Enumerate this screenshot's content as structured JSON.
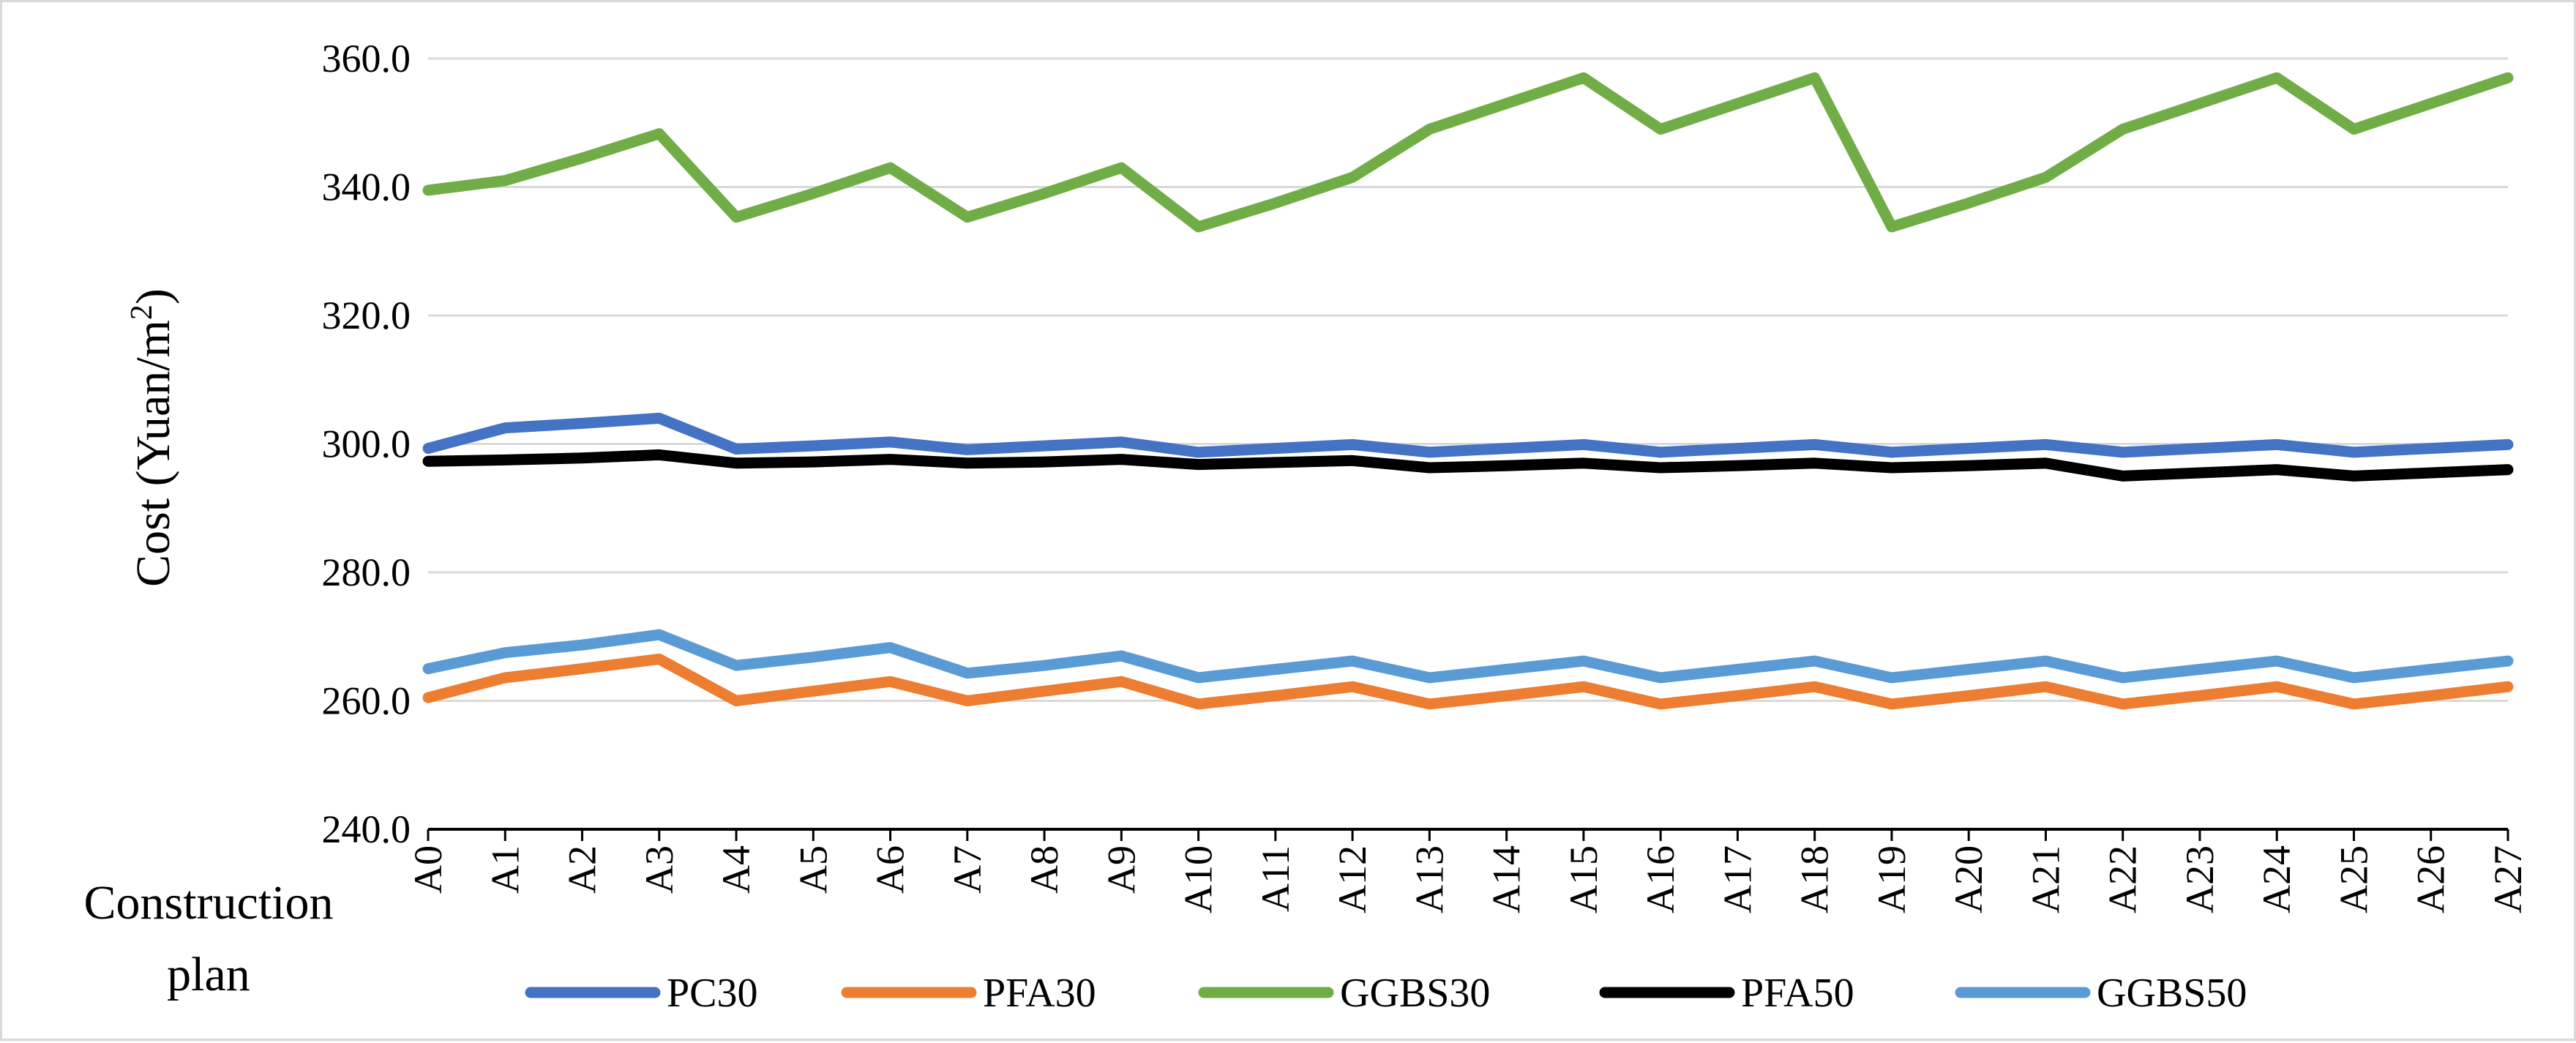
{
  "chart_data": {
    "type": "line",
    "title": "",
    "xlabel": "Construction plan",
    "xlabel_lines": [
      "Construction",
      "plan"
    ],
    "ylabel": "Cost (Yuan/m2)",
    "ylabel_main": "Cost (Yuan/m",
    "ylabel_sup": "2",
    "ylabel_end": ")",
    "ylim": [
      240.0,
      360.0
    ],
    "yticks": [
      "240.0",
      "260.0",
      "280.0",
      "300.0",
      "320.0",
      "340.0",
      "360.0"
    ],
    "ytick_values": [
      240,
      260,
      280,
      300,
      320,
      340,
      360
    ],
    "grid": true,
    "legend_position": "bottom",
    "categories": [
      "A0",
      "A1",
      "A2",
      "A3",
      "A4",
      "A5",
      "A6",
      "A7",
      "A8",
      "A9",
      "A10",
      "A11",
      "A12",
      "A13",
      "A14",
      "A15",
      "A16",
      "A17",
      "A18",
      "A19",
      "A20",
      "A21",
      "A22",
      "A23",
      "A24",
      "A25",
      "A26",
      "A27"
    ],
    "series": [
      {
        "name": "PC30",
        "color": "#4472c4",
        "values": [
          299.3,
          302.5,
          303.2,
          304.0,
          299.2,
          299.7,
          300.3,
          299.1,
          299.7,
          300.3,
          298.7,
          299.3,
          299.9,
          298.7,
          299.3,
          299.9,
          298.7,
          299.3,
          299.9,
          298.7,
          299.3,
          299.9,
          298.7,
          299.3,
          299.9,
          298.7,
          299.3,
          299.9
        ]
      },
      {
        "name": "PFA30",
        "color": "#ed7d31",
        "values": [
          260.5,
          263.6,
          265.0,
          266.5,
          260.0,
          261.5,
          263.0,
          260.0,
          261.5,
          263.0,
          259.5,
          260.8,
          262.2,
          259.5,
          260.8,
          262.2,
          259.5,
          260.8,
          262.2,
          259.5,
          260.8,
          262.2,
          259.5,
          260.8,
          262.2,
          259.5,
          260.8,
          262.2
        ]
      },
      {
        "name": "GGBS30",
        "color": "#70ad47",
        "values": [
          339.5,
          341.0,
          344.5,
          348.3,
          335.3,
          339.0,
          343.0,
          335.3,
          339.0,
          343.0,
          333.8,
          337.5,
          341.5,
          349.0,
          353.0,
          357.0,
          349.0,
          353.0,
          357.0,
          333.8,
          337.5,
          341.5,
          349.0,
          353.0,
          357.0,
          349.0,
          353.0,
          357.0
        ]
      },
      {
        "name": "PFA50",
        "color": "#000000",
        "values": [
          297.3,
          297.5,
          297.8,
          298.3,
          297.0,
          297.2,
          297.6,
          297.0,
          297.2,
          297.6,
          296.8,
          297.1,
          297.4,
          296.3,
          296.6,
          297.0,
          296.3,
          296.6,
          297.0,
          296.3,
          296.6,
          297.0,
          295.0,
          295.5,
          296.0,
          295.0,
          295.5,
          296.0
        ]
      },
      {
        "name": "GGBS50",
        "color": "#5b9bd5",
        "values": [
          265.0,
          267.5,
          268.7,
          270.3,
          265.5,
          266.8,
          268.3,
          264.3,
          265.5,
          267.0,
          263.6,
          264.9,
          266.2,
          263.6,
          264.9,
          266.2,
          263.6,
          264.9,
          266.2,
          263.6,
          264.9,
          266.2,
          263.6,
          264.9,
          266.2,
          263.6,
          264.9,
          266.2
        ]
      }
    ]
  }
}
